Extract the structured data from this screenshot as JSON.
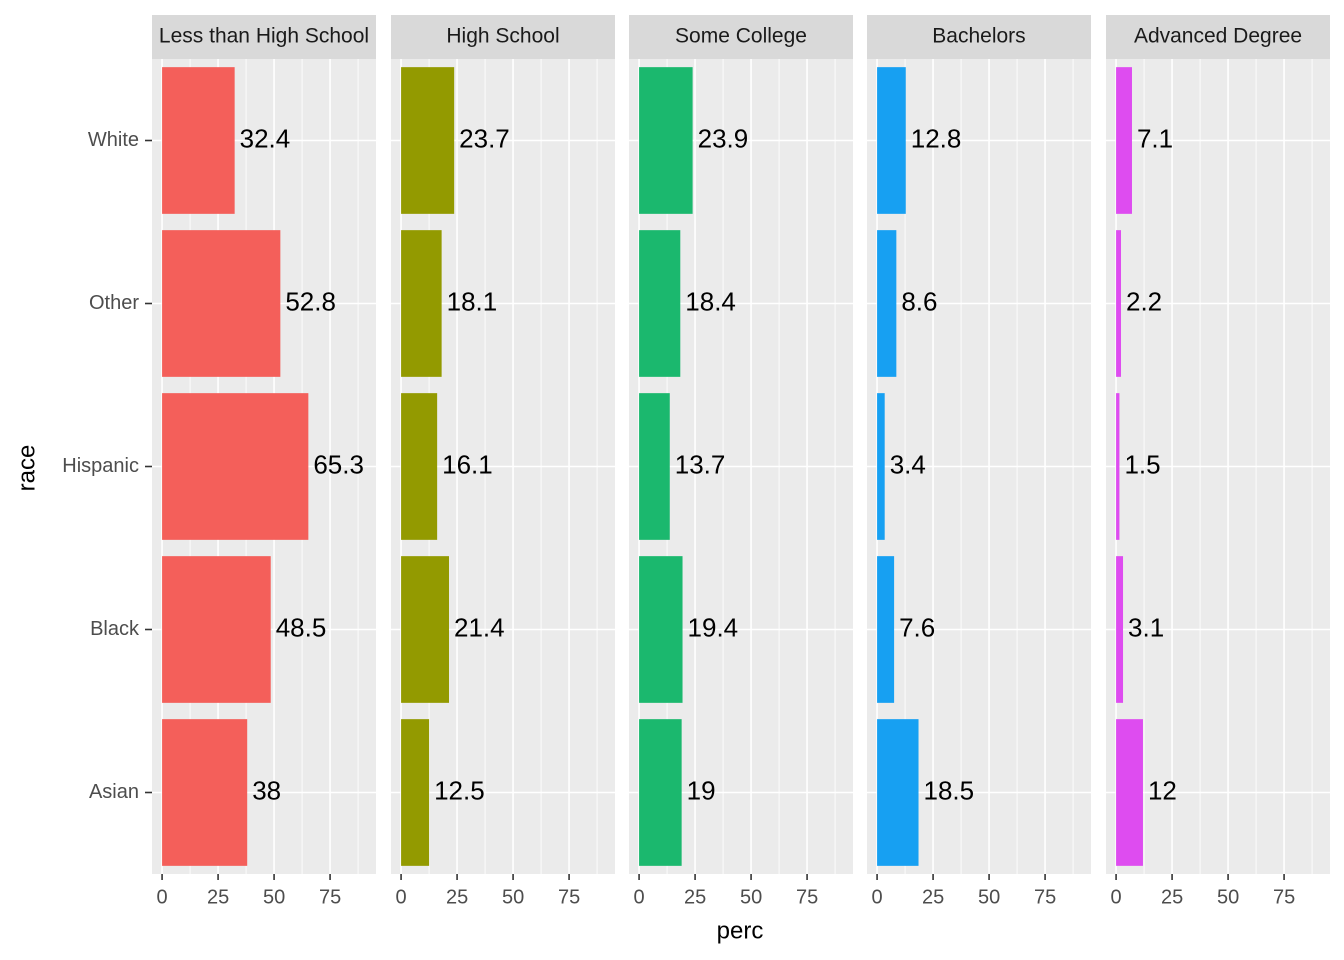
{
  "chart_data": {
    "type": "bar",
    "orientation": "horizontal",
    "x_label": "perc",
    "y_label": "race",
    "categories": [
      "White",
      "Other",
      "Hispanic",
      "Black",
      "Asian"
    ],
    "panels": [
      {
        "title": "Less than High School",
        "color": "#f45f5a",
        "values": [
          32.4,
          52.8,
          65.3,
          48.5,
          38
        ]
      },
      {
        "title": "High School",
        "color": "#939a00",
        "values": [
          23.7,
          18.1,
          16.1,
          21.4,
          12.5
        ]
      },
      {
        "title": "Some College",
        "color": "#1bb86e",
        "values": [
          23.9,
          18.4,
          13.7,
          19.4,
          19
        ]
      },
      {
        "title": "Bachelors",
        "color": "#17a0f2",
        "values": [
          12.8,
          8.6,
          3.4,
          7.6,
          18.5
        ]
      },
      {
        "title": "Advanced Degree",
        "color": "#de4cf0",
        "values": [
          7.1,
          2.2,
          1.5,
          3.1,
          12
        ]
      }
    ],
    "xlim": [
      -4.5,
      95.5
    ],
    "xticks": [
      0,
      25,
      50,
      75
    ],
    "x_minor_ticks": [
      12.5,
      37.5,
      62.5,
      87.5
    ],
    "grid": true
  }
}
